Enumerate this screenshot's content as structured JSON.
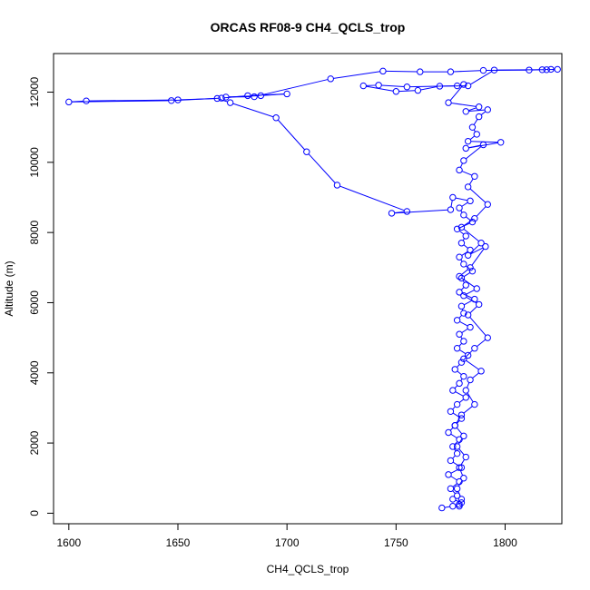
{
  "chart_data": {
    "type": "line",
    "title": "ORCAS RF08-9 CH4_QCLS_trop",
    "xlabel": "CH4_QCLS_trop",
    "ylabel": "Altitude (m)",
    "xlim": [
      1593,
      1826
    ],
    "ylim": [
      -300,
      13100
    ],
    "xticks": [
      1600,
      1650,
      1700,
      1750,
      1800
    ],
    "yticks": [
      0,
      2000,
      4000,
      6000,
      8000,
      10000,
      12000
    ],
    "grid": false,
    "series": [
      {
        "color": "#0000ff",
        "marker": "open-circle",
        "points": [
          [
            1771,
            150
          ],
          [
            1776,
            200
          ],
          [
            1779,
            250
          ],
          [
            1780,
            300
          ],
          [
            1776,
            400
          ],
          [
            1778,
            500
          ],
          [
            1775,
            700
          ],
          [
            1779,
            900
          ],
          [
            1774,
            1100
          ],
          [
            1780,
            1300
          ],
          [
            1775,
            1500
          ],
          [
            1778,
            1700
          ],
          [
            1776,
            1900
          ],
          [
            1779,
            2100
          ],
          [
            1774,
            2300
          ],
          [
            1777,
            2500
          ],
          [
            1780,
            2700
          ],
          [
            1775,
            2900
          ],
          [
            1778,
            3100
          ],
          [
            1782,
            3300
          ],
          [
            1776,
            3500
          ],
          [
            1779,
            3700
          ],
          [
            1781,
            3900
          ],
          [
            1777,
            4100
          ],
          [
            1780,
            4300
          ],
          [
            1783,
            4500
          ],
          [
            1778,
            4700
          ],
          [
            1781,
            4900
          ],
          [
            1779,
            5100
          ],
          [
            1784,
            5300
          ],
          [
            1778,
            5500
          ],
          [
            1781,
            5700
          ],
          [
            1780,
            5900
          ],
          [
            1786,
            6100
          ],
          [
            1779,
            6300
          ],
          [
            1782,
            6500
          ],
          [
            1780,
            6700
          ],
          [
            1785,
            6900
          ],
          [
            1781,
            7100
          ],
          [
            1779,
            7300
          ],
          [
            1784,
            7500
          ],
          [
            1780,
            7700
          ],
          [
            1782,
            7900
          ],
          [
            1778,
            8100
          ],
          [
            1785,
            8300
          ],
          [
            1781,
            8500
          ],
          [
            1779,
            8700
          ],
          [
            1784,
            8900
          ],
          [
            1776,
            9000
          ],
          [
            1775,
            8650
          ],
          [
            1748,
            8550
          ],
          [
            1755,
            8600
          ],
          [
            1723,
            9350
          ],
          [
            1709,
            10300
          ],
          [
            1695,
            11270
          ],
          [
            1674,
            11700
          ],
          [
            1668,
            11820
          ],
          [
            1650,
            11780
          ],
          [
            1608,
            11750
          ],
          [
            1600,
            11720
          ],
          [
            1647,
            11760
          ],
          [
            1670,
            11830
          ],
          [
            1682,
            11900
          ],
          [
            1700,
            11950
          ],
          [
            1688,
            11900
          ],
          [
            1672,
            11860
          ],
          [
            1685,
            11870
          ],
          [
            1720,
            12380
          ],
          [
            1744,
            12600
          ],
          [
            1761,
            12580
          ],
          [
            1775,
            12580
          ],
          [
            1790,
            12620
          ],
          [
            1811,
            12630
          ],
          [
            1817,
            12640
          ],
          [
            1821,
            12650
          ],
          [
            1824,
            12650
          ],
          [
            1819,
            12640
          ],
          [
            1795,
            12630
          ],
          [
            1783,
            12180
          ],
          [
            1770,
            12170
          ],
          [
            1760,
            12050
          ],
          [
            1750,
            12020
          ],
          [
            1735,
            12180
          ],
          [
            1742,
            12200
          ],
          [
            1755,
            12150
          ],
          [
            1778,
            12180
          ],
          [
            1781,
            12220
          ],
          [
            1774,
            11700
          ],
          [
            1788,
            11580
          ],
          [
            1782,
            11450
          ],
          [
            1792,
            11500
          ],
          [
            1788,
            11300
          ],
          [
            1785,
            11000
          ],
          [
            1787,
            10800
          ],
          [
            1783,
            10600
          ],
          [
            1798,
            10570
          ],
          [
            1782,
            10400
          ],
          [
            1790,
            10500
          ],
          [
            1781,
            10050
          ],
          [
            1779,
            9780
          ],
          [
            1786,
            9600
          ],
          [
            1783,
            9300
          ],
          [
            1792,
            8800
          ],
          [
            1786,
            8400
          ],
          [
            1780,
            8150
          ],
          [
            1789,
            7700
          ],
          [
            1783,
            7350
          ],
          [
            1791,
            7600
          ],
          [
            1784,
            7000
          ],
          [
            1779,
            6750
          ],
          [
            1787,
            6400
          ],
          [
            1781,
            6200
          ],
          [
            1788,
            5950
          ],
          [
            1783,
            5650
          ],
          [
            1792,
            5000
          ],
          [
            1786,
            4700
          ],
          [
            1781,
            4400
          ],
          [
            1789,
            4050
          ],
          [
            1784,
            3800
          ],
          [
            1782,
            3500
          ],
          [
            1786,
            3100
          ],
          [
            1780,
            2800
          ],
          [
            1777,
            2500
          ],
          [
            1781,
            2200
          ],
          [
            1778,
            1900
          ],
          [
            1782,
            1600
          ],
          [
            1779,
            1300
          ],
          [
            1781,
            1000
          ],
          [
            1778,
            700
          ],
          [
            1780,
            400
          ],
          [
            1779,
            200
          ]
        ]
      }
    ]
  }
}
